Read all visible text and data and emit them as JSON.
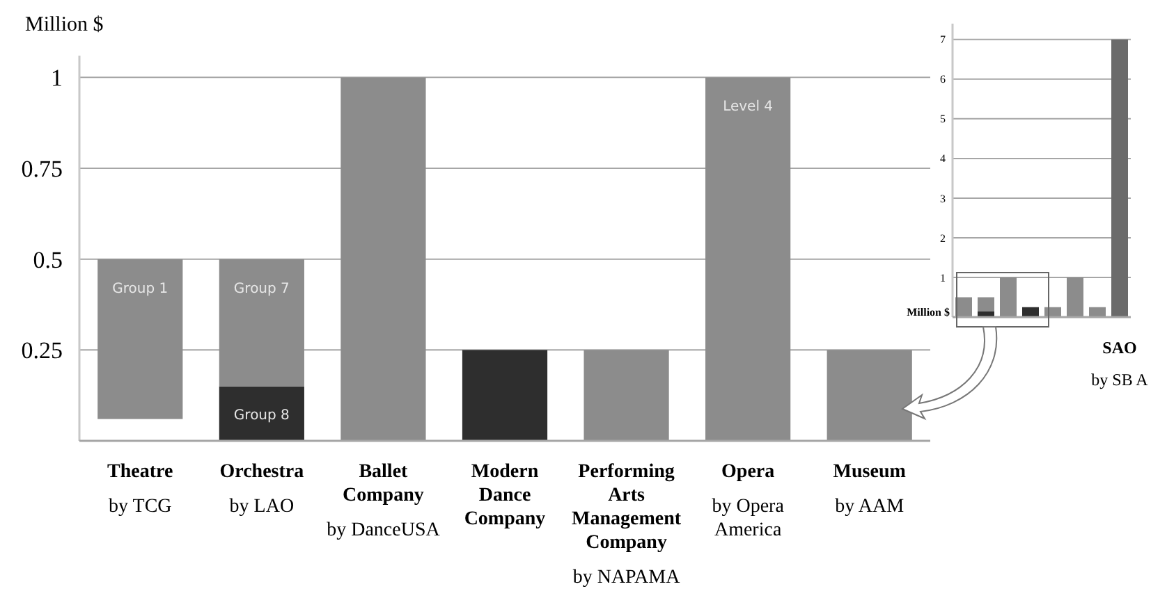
{
  "chart_data": [
    {
      "type": "bar",
      "ylabel": "Million $",
      "grid": "y",
      "categories": [
        "Theatre\nby TCG",
        "Orchestra\nby LAO",
        "Ballet Company\nby DanceUSA",
        "Modern Dance Company",
        "Performing Arts Management Company\nby NAPAMA",
        "Opera\nby Opera America",
        "Museum\nby AAM"
      ],
      "series": [
        {
          "colors": [
            "#8c8c8c",
            "#2e2e2e",
            "#8c8c8c",
            "#2e2e2e",
            "#8c8c8c",
            "#8c8c8c",
            "#8c8c8c"
          ],
          "base": [
            0.06,
            0,
            0,
            0,
            0,
            0,
            0
          ],
          "values": [
            0.44,
            0.15,
            1,
            0.25,
            0.25,
            1,
            0.25
          ],
          "value_labels": [
            "Group 1",
            "Group 8",
            null,
            null,
            null,
            "Level 4",
            null
          ]
        },
        {
          "color": "#8c8c8c",
          "base": [
            null,
            0.15,
            null,
            null,
            null,
            null,
            null
          ],
          "values": [
            null,
            0.35,
            null,
            null,
            null,
            null,
            null
          ],
          "value_labels": [
            null,
            "Group 7",
            null,
            null,
            null,
            null,
            null
          ]
        }
      ],
      "ylim": [
        0,
        1.06
      ],
      "yticks": [
        0.25,
        0.5,
        0.75,
        1
      ]
    },
    {
      "type": "bar",
      "ylabel": "Million $",
      "stacked": true,
      "grid": "y",
      "categories": [
        null,
        null,
        null,
        null,
        null,
        null,
        null,
        "SAO\nby SB A"
      ],
      "series": [
        {
          "colors": [
            "#8c8c8c",
            "#2e2e2e",
            "#8c8c8c",
            "#2e2e2e",
            "#8c8c8c",
            "#8c8c8c",
            "#8c8c8c",
            "#6b6b6b"
          ],
          "values": [
            0.5,
            0.15,
            1,
            0.25,
            0.25,
            1,
            0.25,
            7
          ]
        },
        {
          "color": "#8c8c8c",
          "values": [
            null,
            0.35,
            null,
            null,
            null,
            null,
            null,
            null
          ]
        }
      ],
      "ylim": [
        0,
        7.4
      ],
      "yticks": [
        1,
        2,
        3,
        4,
        5,
        6,
        7
      ]
    }
  ]
}
